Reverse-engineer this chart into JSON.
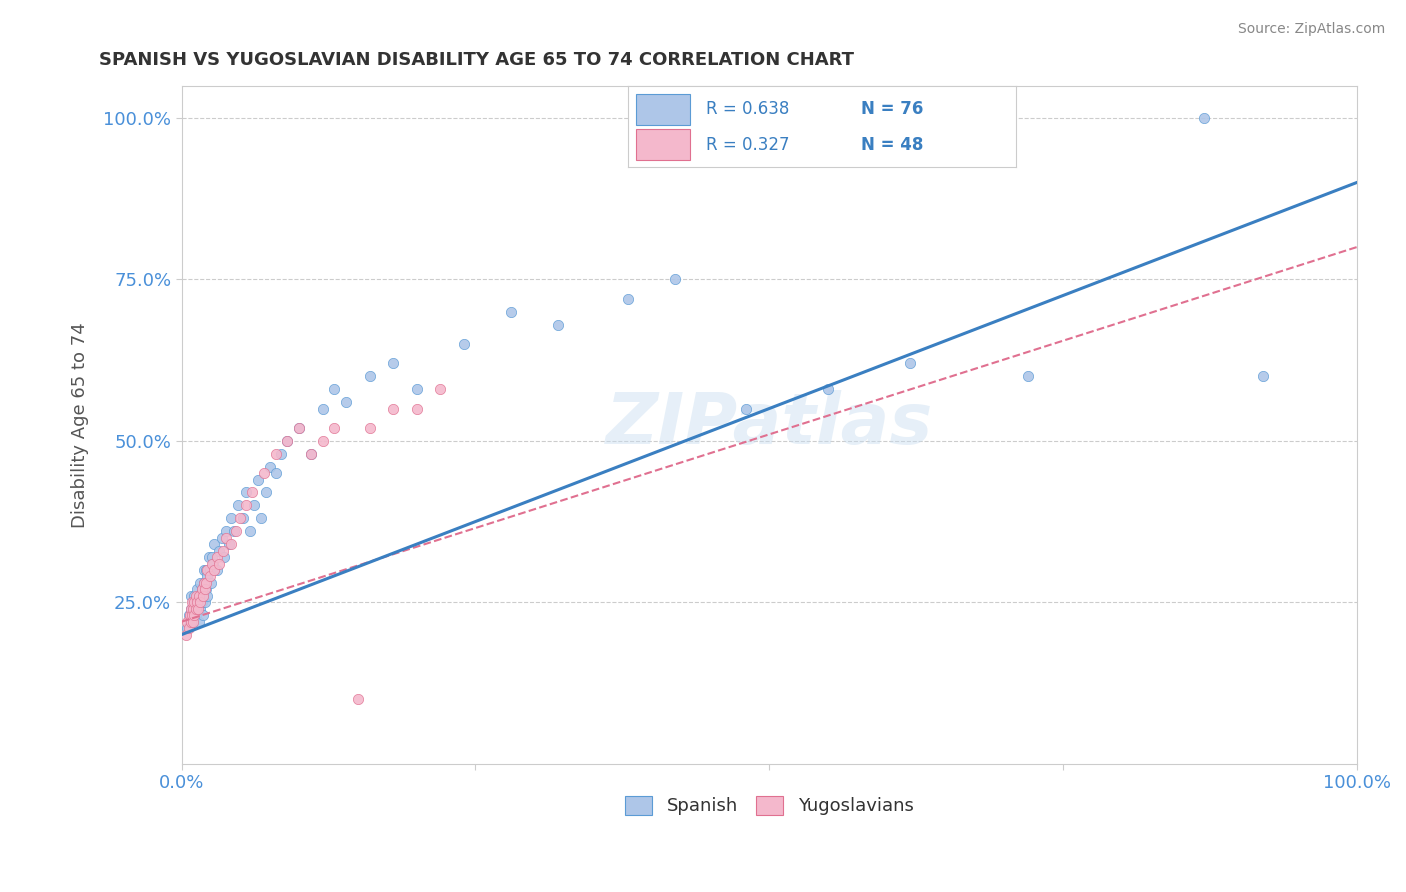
{
  "title": "SPANISH VS YUGOSLAVIAN DISABILITY AGE 65 TO 74 CORRELATION CHART",
  "source": "Source: ZipAtlas.com",
  "ylabel": "Disability Age 65 to 74",
  "yticks_labels": [
    "25.0%",
    "50.0%",
    "75.0%",
    "100.0%"
  ],
  "ytick_vals": [
    0.25,
    0.5,
    0.75,
    1.0
  ],
  "xlim": [
    0.0,
    1.0
  ],
  "ylim": [
    0.0,
    1.05
  ],
  "spanish_color_fill": "#aec6e8",
  "spanish_color_edge": "#5b9bd5",
  "yugoslav_color_fill": "#f4b8cc",
  "yugoslav_color_edge": "#e07090",
  "trend_spanish_color": "#3a7fc1",
  "trend_yugoslav_color": "#e07090",
  "watermark": "ZIPatlas",
  "legend_text_color": "#3a7fc1",
  "legend_r_s": "R = 0.638",
  "legend_n_s": "N = 76",
  "legend_r_y": "R = 0.327",
  "legend_n_y": "N = 48",
  "spanish_x": [
    0.005,
    0.006,
    0.007,
    0.008,
    0.008,
    0.009,
    0.01,
    0.01,
    0.011,
    0.011,
    0.012,
    0.012,
    0.013,
    0.013,
    0.014,
    0.015,
    0.015,
    0.016,
    0.016,
    0.017,
    0.017,
    0.018,
    0.018,
    0.019,
    0.019,
    0.02,
    0.02,
    0.021,
    0.021,
    0.022,
    0.022,
    0.023,
    0.024,
    0.025,
    0.026,
    0.027,
    0.028,
    0.03,
    0.032,
    0.034,
    0.036,
    0.038,
    0.04,
    0.042,
    0.045,
    0.048,
    0.052,
    0.055,
    0.058,
    0.062,
    0.065,
    0.068,
    0.072,
    0.075,
    0.08,
    0.085,
    0.09,
    0.1,
    0.11,
    0.12,
    0.13,
    0.14,
    0.16,
    0.18,
    0.2,
    0.24,
    0.28,
    0.32,
    0.38,
    0.42,
    0.48,
    0.55,
    0.62,
    0.72,
    0.87,
    0.92
  ],
  "spanish_y": [
    0.21,
    0.23,
    0.22,
    0.24,
    0.26,
    0.23,
    0.22,
    0.25,
    0.24,
    0.26,
    0.23,
    0.25,
    0.24,
    0.27,
    0.25,
    0.22,
    0.26,
    0.24,
    0.28,
    0.25,
    0.27,
    0.23,
    0.26,
    0.28,
    0.3,
    0.25,
    0.28,
    0.27,
    0.3,
    0.26,
    0.29,
    0.32,
    0.3,
    0.28,
    0.32,
    0.31,
    0.34,
    0.3,
    0.33,
    0.35,
    0.32,
    0.36,
    0.34,
    0.38,
    0.36,
    0.4,
    0.38,
    0.42,
    0.36,
    0.4,
    0.44,
    0.38,
    0.42,
    0.46,
    0.45,
    0.48,
    0.5,
    0.52,
    0.48,
    0.55,
    0.58,
    0.56,
    0.6,
    0.62,
    0.58,
    0.65,
    0.7,
    0.68,
    0.72,
    0.75,
    0.55,
    0.58,
    0.62,
    0.6,
    1.0,
    0.6
  ],
  "yugoslav_x": [
    0.004,
    0.005,
    0.006,
    0.007,
    0.008,
    0.008,
    0.009,
    0.009,
    0.01,
    0.01,
    0.011,
    0.011,
    0.012,
    0.012,
    0.013,
    0.014,
    0.015,
    0.016,
    0.017,
    0.018,
    0.019,
    0.02,
    0.021,
    0.022,
    0.024,
    0.026,
    0.028,
    0.03,
    0.032,
    0.035,
    0.038,
    0.042,
    0.046,
    0.05,
    0.055,
    0.06,
    0.07,
    0.08,
    0.09,
    0.1,
    0.11,
    0.12,
    0.13,
    0.15,
    0.16,
    0.18,
    0.2,
    0.22
  ],
  "yugoslav_y": [
    0.2,
    0.22,
    0.21,
    0.23,
    0.22,
    0.24,
    0.23,
    0.25,
    0.22,
    0.24,
    0.23,
    0.25,
    0.24,
    0.26,
    0.25,
    0.24,
    0.26,
    0.25,
    0.27,
    0.26,
    0.28,
    0.27,
    0.28,
    0.3,
    0.29,
    0.31,
    0.3,
    0.32,
    0.31,
    0.33,
    0.35,
    0.34,
    0.36,
    0.38,
    0.4,
    0.42,
    0.45,
    0.48,
    0.5,
    0.52,
    0.48,
    0.5,
    0.52,
    0.1,
    0.52,
    0.55,
    0.55,
    0.58
  ]
}
